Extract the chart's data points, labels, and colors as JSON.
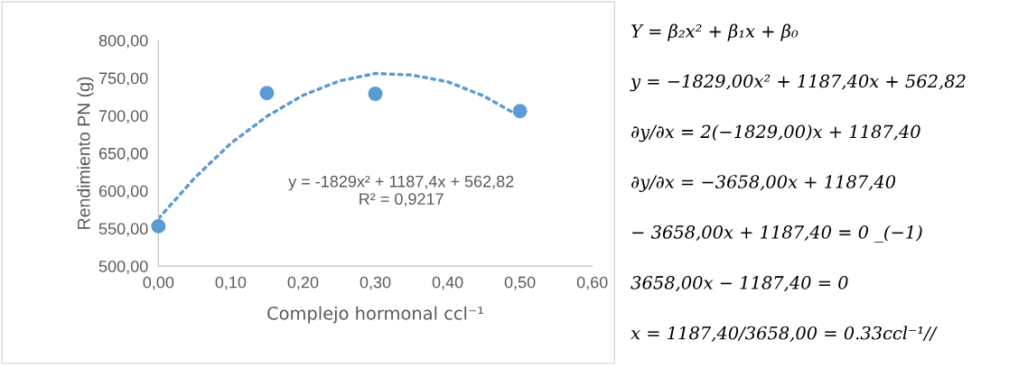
{
  "chart_data": [
    {
      "type": "scatter",
      "xlabel": "Complejo hormonal ccl⁻¹",
      "ylabel": "Rendimiento PN (g)",
      "x": [
        0.0,
        0.15,
        0.3,
        0.5
      ],
      "series": [
        {
          "type": "scatter",
          "color": "#5b9bd5",
          "marker": "circle",
          "values": [
            553,
            730,
            729,
            706
          ]
        },
        {
          "type": "line",
          "color": "#5b9bd5",
          "line_style": "dotted",
          "marker": "none",
          "x": [
            0.0,
            0.05,
            0.1,
            0.15,
            0.2,
            0.25,
            0.3,
            0.35,
            0.4,
            0.45,
            0.5
          ],
          "values": [
            563,
            617,
            663,
            699,
            727,
            746,
            756,
            754,
            745,
            726,
            699
          ]
        }
      ],
      "xlim": [
        0,
        0.6
      ],
      "xticks": [
        {
          "value": 0,
          "label": "0,00"
        },
        {
          "value": 0.1,
          "label": "0,10"
        },
        {
          "value": 0.2,
          "label": "0,20"
        },
        {
          "value": 0.3,
          "label": "0,30"
        },
        {
          "value": 0.4,
          "label": "0,40"
        },
        {
          "value": 0.5,
          "label": "0,50"
        },
        {
          "value": 0.6,
          "label": "0,60"
        }
      ],
      "ylim": [
        500,
        800
      ],
      "yticks": [
        {
          "value": 500,
          "label": "500,00"
        },
        {
          "value": 550,
          "label": "550,00"
        },
        {
          "value": 600,
          "label": "600,00"
        },
        {
          "value": 650,
          "label": "650,00"
        },
        {
          "value": 700,
          "label": "700,00"
        },
        {
          "value": 750,
          "label": "750,00"
        },
        {
          "value": 800,
          "label": "800,00"
        }
      ],
      "grid": false,
      "legend": false,
      "annotations": [
        "y = -1829x² + 1187,4x + 562,82\nR² = 0,9217"
      ]
    },
    {
      "type": "other",
      "annotations": [
        "Y = β₂x² + β₁x + β₀",
        "y = −1829,00x² + 1187,40x + 562,82",
        "∂y/∂x = 2(−1829,00)x + 1187,40",
        "∂y/∂x = −3658,00x + 1187,40",
        "− 3658,00x + 1187,40 = 0 _(−1)",
        "3658,00x − 1187,40 = 0",
        "x = 1187,40/3658,00 = 0.33ccl⁻¹//"
      ]
    }
  ]
}
